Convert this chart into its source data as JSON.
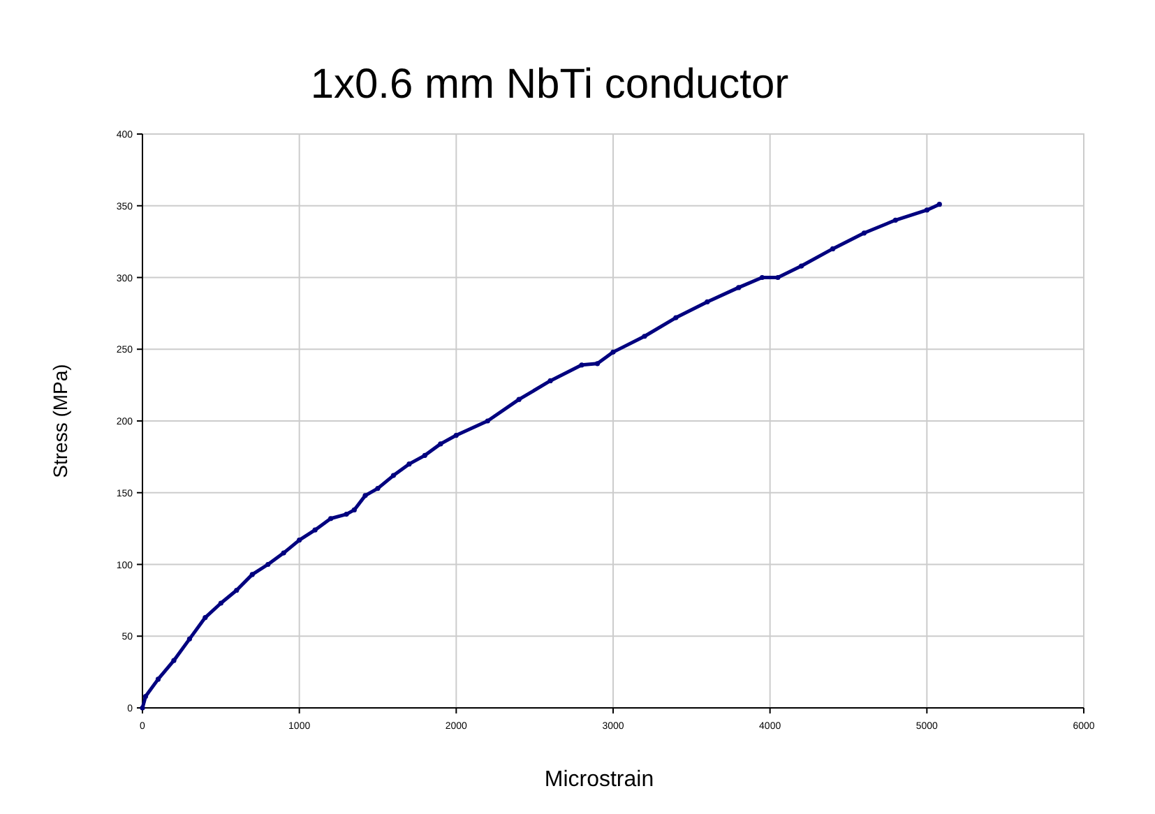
{
  "chart_data": {
    "type": "line",
    "title": "1x0.6 mm NbTi  conductor",
    "xlabel": "Microstrain",
    "ylabel": "Stress (MPa)",
    "x": [
      0,
      20,
      100,
      200,
      300,
      400,
      500,
      600,
      700,
      800,
      900,
      1000,
      1100,
      1200,
      1300,
      1350,
      1420,
      1500,
      1600,
      1700,
      1800,
      1900,
      2000,
      2200,
      2400,
      2600,
      2800,
      2900,
      3000,
      3200,
      3400,
      3600,
      3800,
      3950,
      4050,
      4200,
      4400,
      4600,
      4800,
      5000,
      5080
    ],
    "series": [
      {
        "color": "#00007f",
        "values": [
          0,
          8,
          20,
          33,
          48,
          63,
          73,
          82,
          93,
          100,
          108,
          117,
          124,
          132,
          135,
          138,
          148,
          153,
          162,
          170,
          176,
          184,
          190,
          200,
          215,
          228,
          239,
          240,
          248,
          259,
          272,
          283,
          293,
          300,
          300,
          308,
          320,
          331,
          340,
          347,
          351
        ]
      }
    ],
    "xlim": [
      0,
      6000
    ],
    "xticks": [
      0,
      1000,
      2000,
      3000,
      4000,
      5000,
      6000
    ],
    "ylim": [
      0,
      400
    ],
    "yticks": [
      0,
      50,
      100,
      150,
      200,
      250,
      300,
      350,
      400
    ],
    "grid": true,
    "marker": "circle",
    "line_style": "solid"
  }
}
